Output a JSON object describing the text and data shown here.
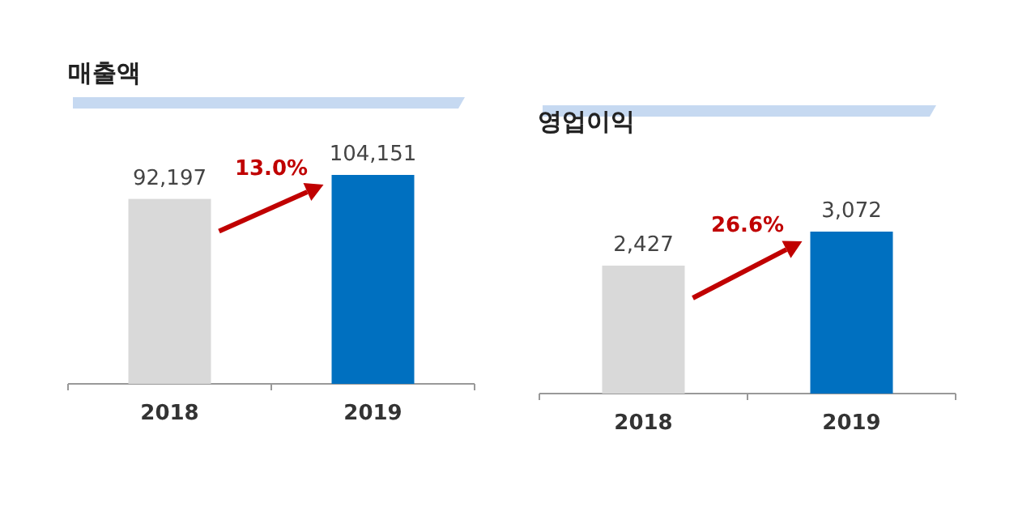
{
  "chart_data": [
    {
      "type": "bar",
      "title": "매출액",
      "categories": [
        "2018",
        "2019"
      ],
      "values": [
        92197,
        104151
      ],
      "colors": [
        "#d9d9d9",
        "#0070c0"
      ],
      "value_labels": [
        "92,197",
        "104,151"
      ],
      "annotations": [
        "13.0%"
      ]
    },
    {
      "type": "bar",
      "title": "영업이익",
      "categories": [
        "2018",
        "2019"
      ],
      "values": [
        2427,
        3072
      ],
      "colors": [
        "#d9d9d9",
        "#0070c0"
      ],
      "value_labels": [
        "2,427",
        "3,072"
      ],
      "annotations": [
        "26.6%"
      ]
    }
  ]
}
